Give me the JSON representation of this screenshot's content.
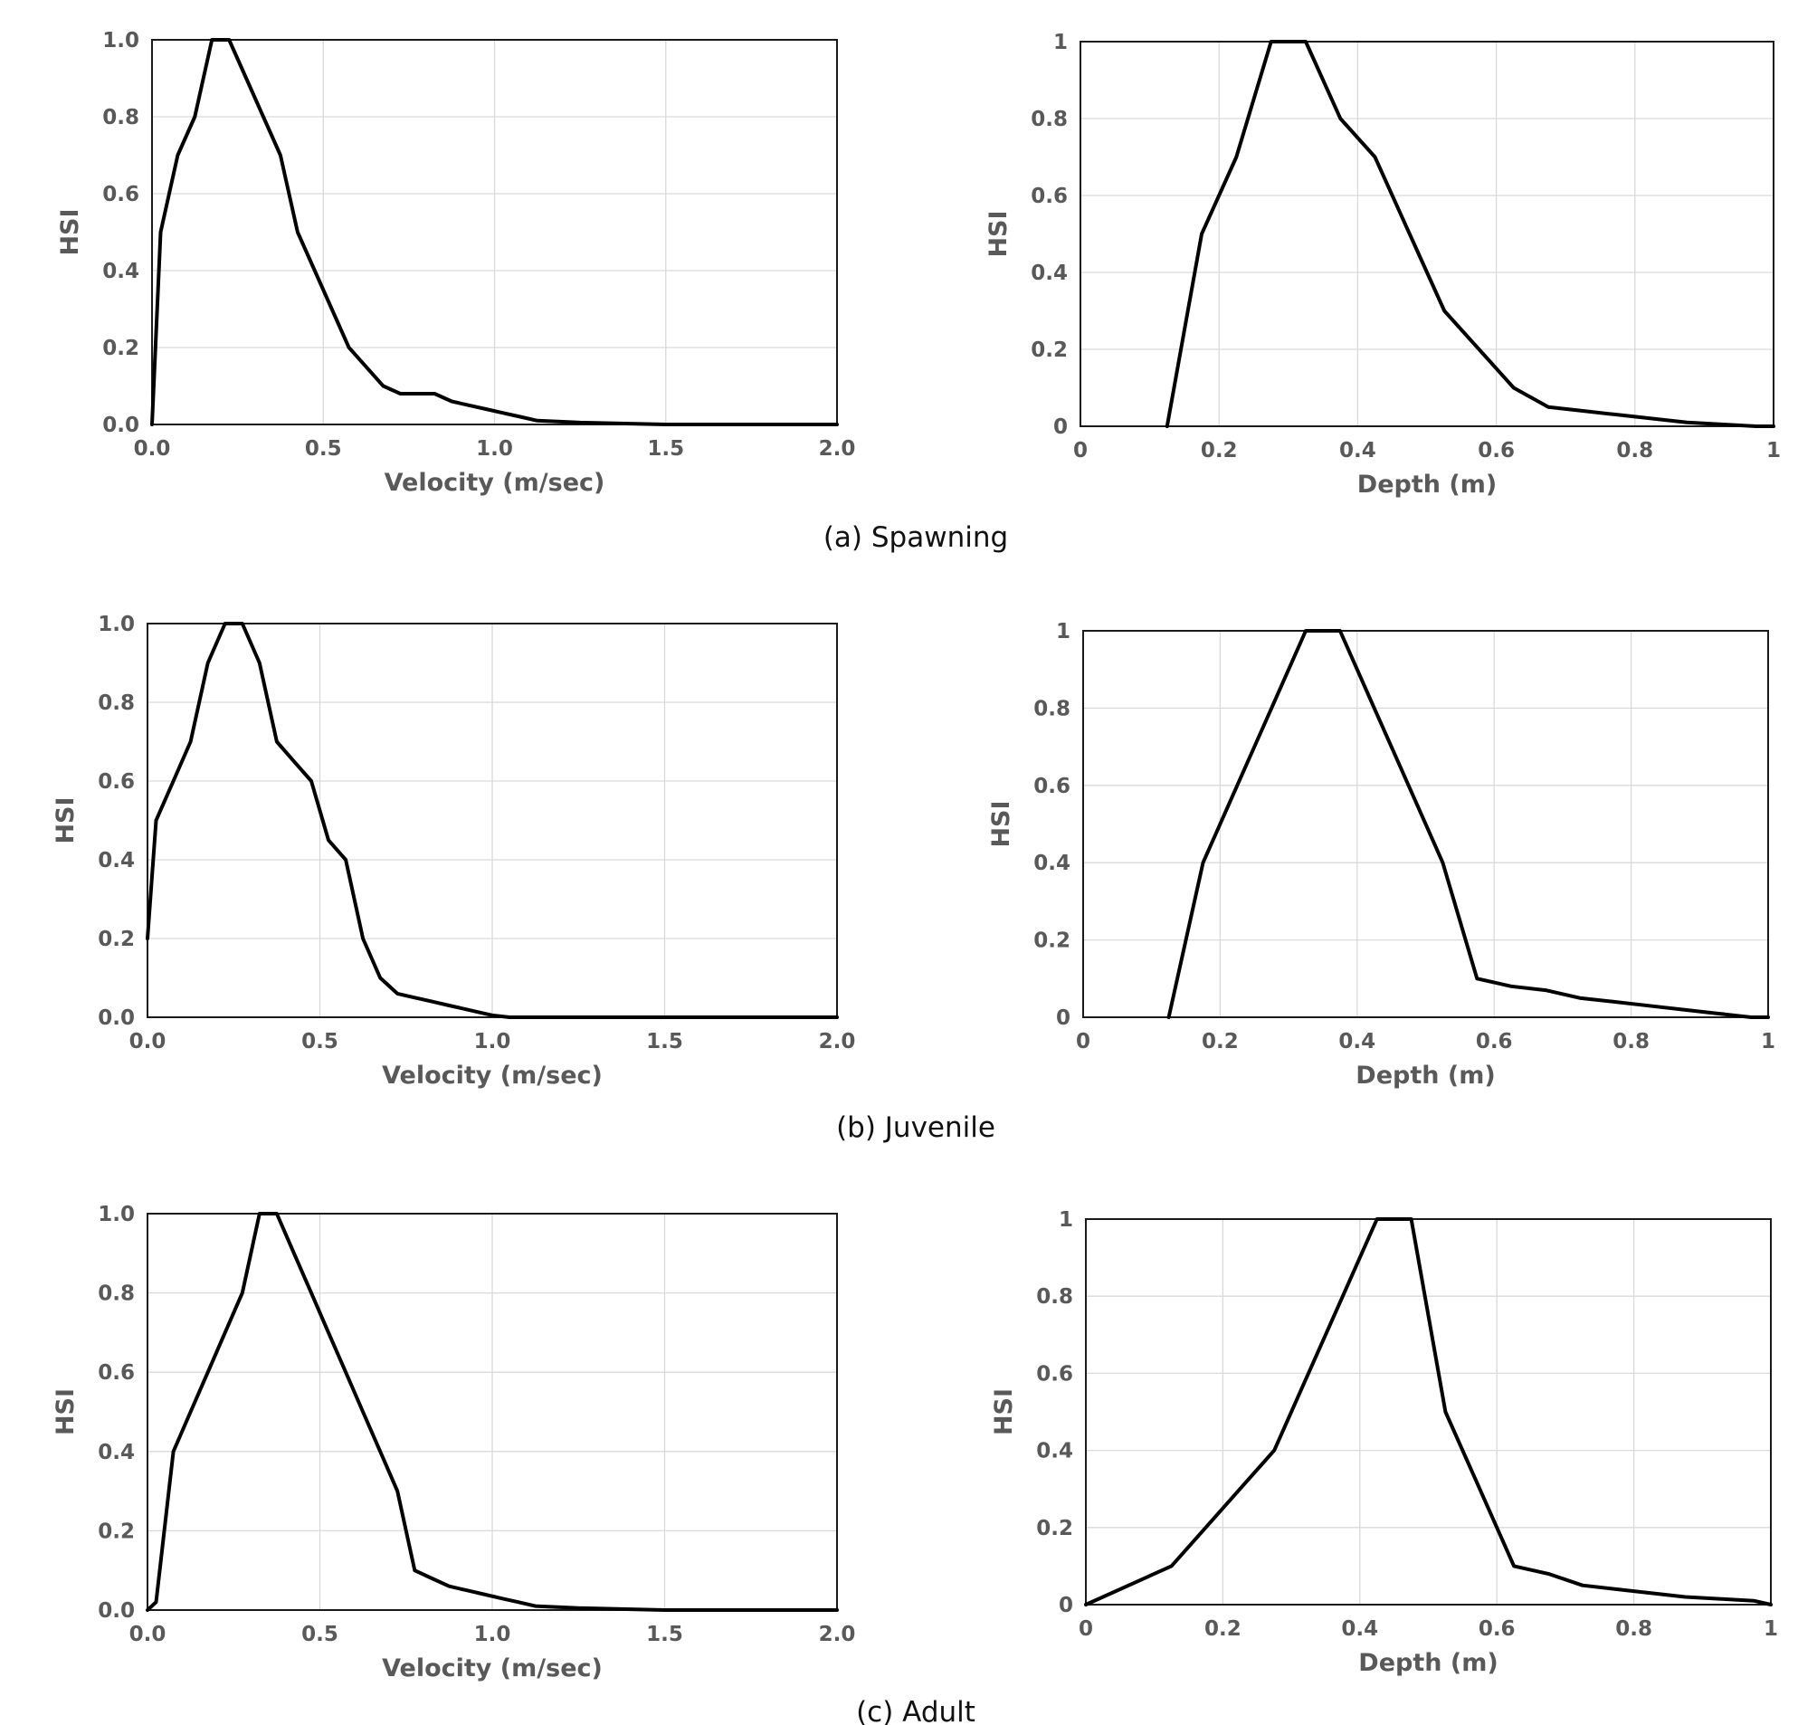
{
  "figure": {
    "captions": [
      "(a) Spawning",
      "(b) Juvenile",
      "(c) Adult"
    ]
  },
  "colors": {
    "line": "#000000",
    "grid": "#d9d9d9",
    "tick_text": "#595959",
    "frame": "#1a1a1a"
  },
  "chart_data": [
    {
      "type": "line",
      "panel": "a-velocity",
      "xlabel": "Velocity (m/sec)",
      "ylabel": "HSI",
      "xlim": [
        0,
        2
      ],
      "ylim": [
        0,
        1
      ],
      "xticks": [
        "0.0",
        "0.5",
        "1.0",
        "1.5",
        "2.0"
      ],
      "yticks": [
        "0.0",
        "0.2",
        "0.4",
        "0.6",
        "0.8",
        "1.0"
      ],
      "grid": true,
      "legend": "none",
      "series": [
        {
          "x": [
            0,
            0.025,
            0.075,
            0.125,
            0.175,
            0.225,
            0.275,
            0.325,
            0.375,
            0.425,
            0.475,
            0.525,
            0.575,
            0.625,
            0.675,
            0.725,
            0.775,
            0.825,
            0.875,
            0.925,
            0.975,
            1.025,
            1.075,
            1.125,
            1.25,
            1.5,
            2.0
          ],
          "y": [
            0,
            0.5,
            0.7,
            0.8,
            1.0,
            1.0,
            0.9,
            0.8,
            0.7,
            0.5,
            0.4,
            0.3,
            0.2,
            0.15,
            0.1,
            0.08,
            0.08,
            0.08,
            0.06,
            0.05,
            0.04,
            0.03,
            0.02,
            0.01,
            0.005,
            0,
            0
          ]
        }
      ]
    },
    {
      "type": "line",
      "panel": "a-depth",
      "xlabel": "Depth (m)",
      "ylabel": "HSI",
      "xlim": [
        0,
        1
      ],
      "ylim": [
        0,
        1
      ],
      "xticks": [
        "0",
        "0.2",
        "0.4",
        "0.6",
        "0.8",
        "1"
      ],
      "yticks": [
        "0",
        "0.2",
        "0.4",
        "0.6",
        "0.8",
        "1"
      ],
      "grid": true,
      "legend": "none",
      "series": [
        {
          "x": [
            0.125,
            0.175,
            0.225,
            0.275,
            0.325,
            0.375,
            0.425,
            0.475,
            0.525,
            0.575,
            0.625,
            0.675,
            0.725,
            0.775,
            0.825,
            0.875,
            0.925,
            0.975,
            1.0
          ],
          "y": [
            0,
            0.5,
            0.7,
            1.0,
            1.0,
            0.8,
            0.7,
            0.5,
            0.3,
            0.2,
            0.1,
            0.05,
            0.04,
            0.03,
            0.02,
            0.01,
            0.005,
            0,
            0
          ]
        }
      ]
    },
    {
      "type": "line",
      "panel": "b-velocity",
      "xlabel": "Velocity (m/sec)",
      "ylabel": "HSI",
      "xlim": [
        0,
        2
      ],
      "ylim": [
        0,
        1
      ],
      "xticks": [
        "0.0",
        "0.5",
        "1.0",
        "1.5",
        "2.0"
      ],
      "yticks": [
        "0.0",
        "0.2",
        "0.4",
        "0.6",
        "0.8",
        "1.0"
      ],
      "grid": true,
      "legend": "none",
      "series": [
        {
          "x": [
            0,
            0.025,
            0.075,
            0.125,
            0.175,
            0.225,
            0.275,
            0.325,
            0.375,
            0.425,
            0.475,
            0.525,
            0.575,
            0.625,
            0.675,
            0.725,
            0.775,
            0.825,
            0.875,
            0.925,
            0.975,
            1.0,
            1.05,
            1.5,
            2.0
          ],
          "y": [
            0.2,
            0.5,
            0.6,
            0.7,
            0.9,
            1.0,
            1.0,
            0.9,
            0.7,
            0.65,
            0.6,
            0.45,
            0.4,
            0.2,
            0.1,
            0.06,
            0.05,
            0.04,
            0.03,
            0.02,
            0.01,
            0.005,
            0,
            0,
            0
          ]
        }
      ]
    },
    {
      "type": "line",
      "panel": "b-depth",
      "xlabel": "Depth (m)",
      "ylabel": "HSI",
      "xlim": [
        0,
        1
      ],
      "ylim": [
        0,
        1
      ],
      "xticks": [
        "0",
        "0.2",
        "0.4",
        "0.6",
        "0.8",
        "1"
      ],
      "yticks": [
        "0",
        "0.2",
        "0.4",
        "0.6",
        "0.8",
        "1"
      ],
      "grid": true,
      "legend": "none",
      "series": [
        {
          "x": [
            0.125,
            0.175,
            0.225,
            0.275,
            0.325,
            0.375,
            0.425,
            0.475,
            0.525,
            0.575,
            0.625,
            0.675,
            0.725,
            0.775,
            0.825,
            0.875,
            0.925,
            0.975,
            1.0
          ],
          "y": [
            0,
            0.4,
            0.6,
            0.8,
            1.0,
            1.0,
            0.8,
            0.6,
            0.4,
            0.1,
            0.08,
            0.07,
            0.05,
            0.04,
            0.03,
            0.02,
            0.01,
            0,
            0
          ]
        }
      ]
    },
    {
      "type": "line",
      "panel": "c-velocity",
      "xlabel": "Velocity (m/sec)",
      "ylabel": "HSI",
      "xlim": [
        0,
        2
      ],
      "ylim": [
        0,
        1
      ],
      "xticks": [
        "0.0",
        "0.5",
        "1.0",
        "1.5",
        "2.0"
      ],
      "yticks": [
        "0.0",
        "0.2",
        "0.4",
        "0.6",
        "0.8",
        "1.0"
      ],
      "grid": true,
      "legend": "none",
      "series": [
        {
          "x": [
            0,
            0.025,
            0.075,
            0.125,
            0.175,
            0.225,
            0.275,
            0.325,
            0.375,
            0.425,
            0.475,
            0.525,
            0.575,
            0.625,
            0.675,
            0.725,
            0.775,
            0.825,
            0.875,
            0.925,
            0.975,
            1.025,
            1.075,
            1.125,
            1.25,
            1.5,
            2.0
          ],
          "y": [
            0,
            0.02,
            0.4,
            0.5,
            0.6,
            0.7,
            0.8,
            1.0,
            1.0,
            0.9,
            0.8,
            0.7,
            0.6,
            0.5,
            0.4,
            0.3,
            0.1,
            0.08,
            0.06,
            0.05,
            0.04,
            0.03,
            0.02,
            0.01,
            0.005,
            0,
            0
          ]
        }
      ]
    },
    {
      "type": "line",
      "panel": "c-depth",
      "xlabel": "Depth (m)",
      "ylabel": "HSI",
      "xlim": [
        0,
        1
      ],
      "ylim": [
        0,
        1
      ],
      "xticks": [
        "0",
        "0.2",
        "0.4",
        "0.6",
        "0.8",
        "1"
      ],
      "yticks": [
        "0",
        "0.2",
        "0.4",
        "0.6",
        "0.8",
        "1"
      ],
      "grid": true,
      "legend": "none",
      "series": [
        {
          "x": [
            0,
            0.125,
            0.175,
            0.225,
            0.275,
            0.325,
            0.375,
            0.425,
            0.475,
            0.525,
            0.575,
            0.625,
            0.675,
            0.725,
            0.775,
            0.825,
            0.875,
            0.925,
            0.975,
            1.0
          ],
          "y": [
            0,
            0.1,
            0.2,
            0.3,
            0.4,
            0.6,
            0.8,
            1.0,
            1.0,
            0.5,
            0.3,
            0.1,
            0.08,
            0.05,
            0.04,
            0.03,
            0.02,
            0.015,
            0.01,
            0
          ]
        }
      ]
    }
  ]
}
